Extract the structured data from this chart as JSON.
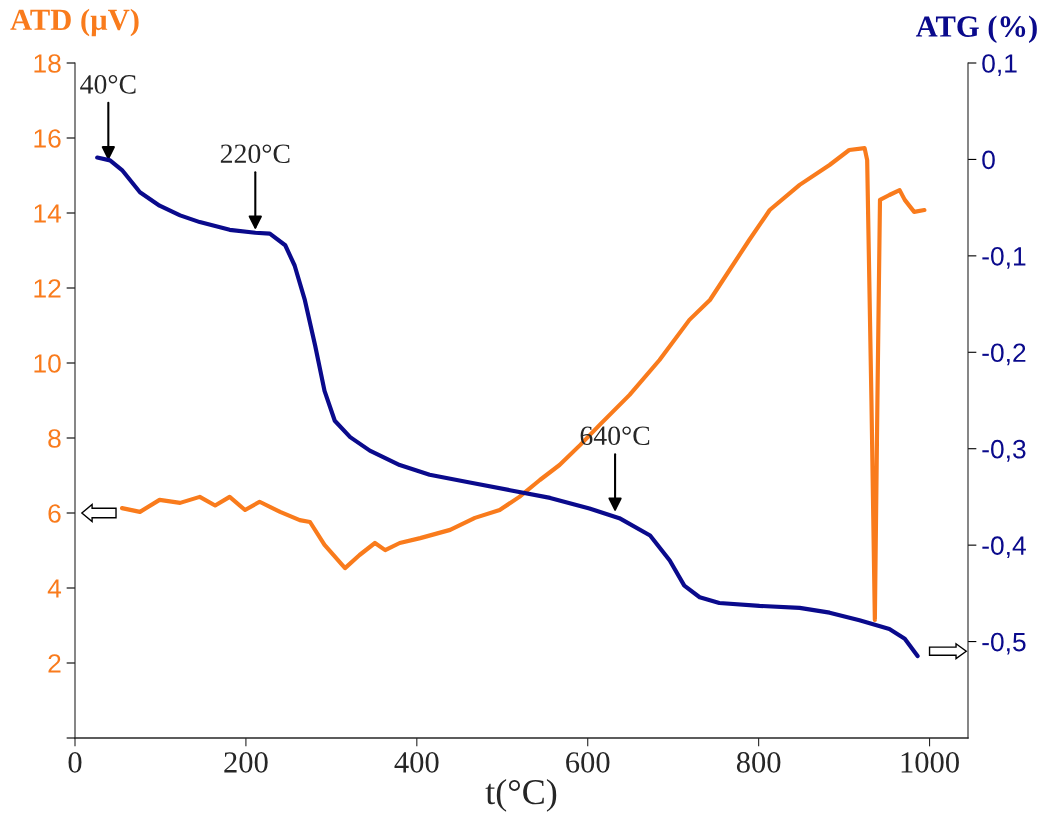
{
  "chart_data": {
    "type": "line",
    "xlabel": "t(°C)",
    "ylabel": "ATD (µV)",
    "y2label": "ATG (%)",
    "xlim": [
      0,
      1045
    ],
    "xticks": [
      0,
      200,
      400,
      600,
      800,
      1000
    ],
    "ylim": [
      0,
      18
    ],
    "yticks": [
      {
        "value": 0,
        "label": null
      },
      2,
      4,
      6,
      8,
      10,
      12,
      14,
      16,
      18
    ],
    "y2lim": [
      -0.6,
      0.1
    ],
    "y2ticks": [
      {
        "value": 0.1,
        "label": "0,1"
      },
      0,
      {
        "value": -0.1,
        "label": "-0,1"
      },
      {
        "value": -0.2,
        "label": "-0,2"
      },
      {
        "value": -0.3,
        "label": "-0,3"
      },
      {
        "value": -0.4,
        "label": "-0,4"
      },
      {
        "value": -0.5,
        "label": "-0,5"
      }
    ],
    "grid": false,
    "series": [
      {
        "color": "#f97b1c",
        "x": [
          55,
          76,
          99,
          123,
          146,
          164,
          181,
          199,
          216,
          240,
          263,
          275,
          292,
          316,
          333,
          351,
          363,
          380,
          404,
          439,
          468,
          497,
          520,
          544,
          567,
          591,
          614,
          649,
          684,
          719,
          743,
          766,
          789,
          813,
          848,
          883,
          906,
          924,
          927,
          932,
          936,
          939,
          942,
          953,
          965,
          971,
          982,
          994
        ],
        "values": [
          6.13,
          6.03,
          6.35,
          6.27,
          6.43,
          6.2,
          6.43,
          6.08,
          6.3,
          6.03,
          5.81,
          5.76,
          5.15,
          4.53,
          4.88,
          5.2,
          5.01,
          5.2,
          5.33,
          5.55,
          5.87,
          6.08,
          6.43,
          6.88,
          7.28,
          7.81,
          8.35,
          9.15,
          10.08,
          11.15,
          11.68,
          12.48,
          13.28,
          14.08,
          14.75,
          15.28,
          15.68,
          15.73,
          15.41,
          9.0,
          3.15,
          9.0,
          14.35,
          14.48,
          14.61,
          14.35,
          14.03,
          14.08
        ]
      },
      {
        "color": "#0a0a8c",
        "axis": "y2",
        "x": [
          26,
          41,
          55,
          76,
          99,
          123,
          146,
          181,
          211,
          228,
          246,
          257,
          269,
          281,
          292,
          304,
          322,
          345,
          380,
          415,
          462,
          509,
          556,
          602,
          637,
          673,
          696,
          713,
          731,
          754,
          801,
          848,
          883,
          918,
          953,
          971,
          986
        ],
        "values": [
          0.002,
          -0.001,
          -0.011,
          -0.034,
          -0.048,
          -0.058,
          -0.065,
          -0.073,
          -0.076,
          -0.077,
          -0.089,
          -0.11,
          -0.146,
          -0.193,
          -0.24,
          -0.271,
          -0.288,
          -0.302,
          -0.317,
          -0.327,
          -0.335,
          -0.343,
          -0.351,
          -0.362,
          -0.372,
          -0.39,
          -0.416,
          -0.442,
          -0.454,
          -0.46,
          -0.463,
          -0.465,
          -0.47,
          -0.478,
          -0.487,
          -0.497,
          -0.515
        ]
      }
    ],
    "annotations": [
      {
        "text": "40°C",
        "x": 39,
        "y": 15.4
      },
      {
        "text": "220°C",
        "x": 211,
        "y": 13.55
      },
      {
        "text": "640°C",
        "x": 632,
        "y": 6.03
      }
    ]
  }
}
